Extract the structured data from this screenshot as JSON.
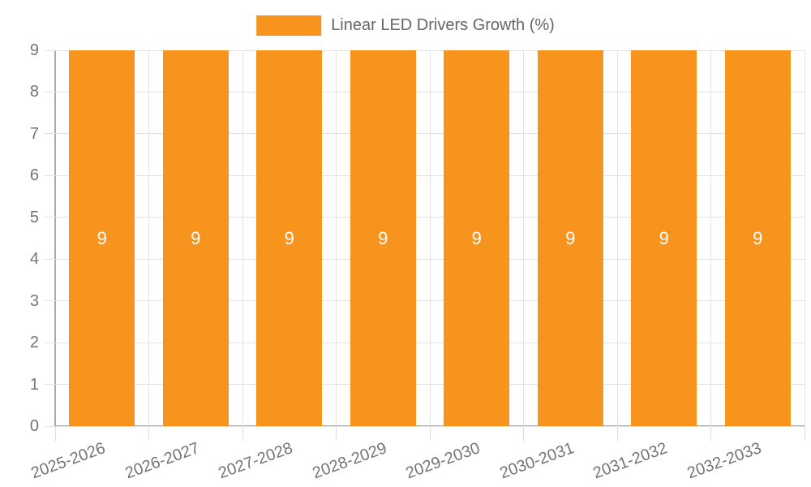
{
  "chart_data": {
    "type": "bar",
    "title": "Linear LED Drivers Growth (%)",
    "legend_label": "Linear LED Drivers Growth (%)",
    "legend_position": "top-center",
    "categories": [
      "2025-2026",
      "2026-2027",
      "2027-2028",
      "2028-2029",
      "2029-2030",
      "2030-2031",
      "2031-2032",
      "2032-2033"
    ],
    "series": [
      {
        "name": "Linear LED Drivers Growth (%)",
        "values": [
          9,
          9,
          9,
          9,
          9,
          9,
          9,
          9
        ]
      }
    ],
    "value_labels": [
      "9",
      "9",
      "9",
      "9",
      "9",
      "9",
      "9",
      "9"
    ],
    "xlabel": "",
    "ylabel": "",
    "ylim": [
      0,
      9
    ],
    "yticks": [
      0,
      1,
      2,
      3,
      4,
      5,
      6,
      7,
      8,
      9
    ],
    "grid": true,
    "bar_color": "#F7941E",
    "grid_color": "#E2E2E2",
    "axis_color": "#AAAAAA",
    "axis_label_color": "#757575",
    "legend_text_color": "#666666",
    "value_label_color": "#FFFFFF"
  }
}
